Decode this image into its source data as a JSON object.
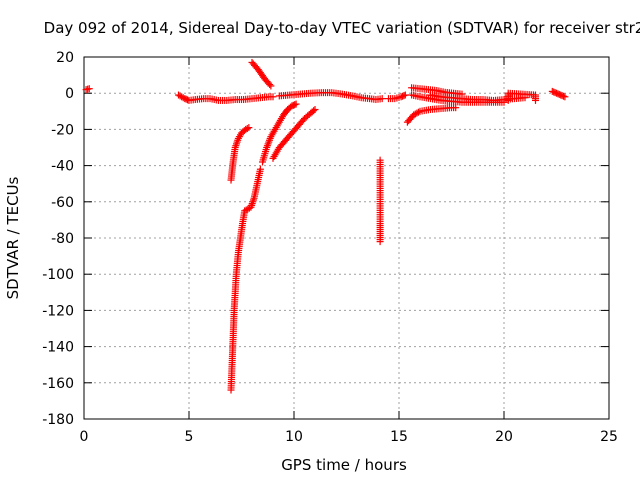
{
  "chart_data": {
    "type": "scatter",
    "title": "Day 092 of 2014, Sidereal Day-to-day VTEC variation (SDTVAR) for receiver str2",
    "xlabel": "GPS time / hours",
    "ylabel": "SDTVAR / TECUs",
    "xlim": [
      0,
      25
    ],
    "ylim": [
      -180,
      20
    ],
    "xticks": [
      0,
      5,
      10,
      15,
      20,
      25
    ],
    "yticks": [
      20,
      0,
      -20,
      -40,
      -60,
      -80,
      -100,
      -120,
      -140,
      -160,
      -180
    ],
    "grid": true,
    "marker": "plus",
    "marker_color": "#ff0000",
    "series": [
      {
        "segments": [
          [
            [
              0.1,
              2
            ],
            [
              0.25,
              2.5
            ]
          ],
          [
            [
              4.5,
              -1
            ],
            [
              4.8,
              -3
            ],
            [
              5.0,
              -4
            ],
            [
              5.3,
              -3.5
            ],
            [
              5.7,
              -3
            ],
            [
              6.0,
              -3
            ],
            [
              6.4,
              -4
            ],
            [
              6.8,
              -4
            ],
            [
              7.2,
              -3.5
            ],
            [
              7.6,
              -3.5
            ],
            [
              8.0,
              -3
            ],
            [
              8.4,
              -2.5
            ],
            [
              8.8,
              -2
            ],
            [
              9.0,
              -2
            ]
          ],
          [
            [
              9.3,
              -1.5
            ],
            [
              9.8,
              -1
            ],
            [
              10.3,
              -0.5
            ],
            [
              10.8,
              0
            ],
            [
              11.3,
              0.3
            ],
            [
              11.8,
              0.3
            ],
            [
              12.3,
              -0.5
            ],
            [
              12.8,
              -1.5
            ],
            [
              13.2,
              -2.5
            ],
            [
              13.6,
              -3
            ],
            [
              13.9,
              -3.5
            ],
            [
              14.2,
              -3
            ]
          ],
          [
            [
              14.5,
              -3
            ],
            [
              14.8,
              -3
            ],
            [
              15.1,
              -2
            ],
            [
              15.3,
              -1
            ]
          ],
          [
            [
              15.6,
              3
            ],
            [
              16.0,
              2.5
            ],
            [
              16.4,
              2
            ],
            [
              16.8,
              1.5
            ],
            [
              17.2,
              0.5
            ],
            [
              17.6,
              0
            ],
            [
              18.0,
              -0.5
            ]
          ],
          [
            [
              15.6,
              -1
            ],
            [
              16.0,
              -2
            ],
            [
              16.5,
              -3
            ],
            [
              17.0,
              -4
            ],
            [
              17.5,
              -4.5
            ],
            [
              18.0,
              -5
            ],
            [
              18.5,
              -5
            ],
            [
              19.0,
              -5
            ],
            [
              19.5,
              -5
            ],
            [
              20.0,
              -5
            ]
          ],
          [
            [
              16.5,
              -1
            ],
            [
              17.0,
              -2
            ],
            [
              17.5,
              -2.5
            ],
            [
              18.0,
              -3
            ],
            [
              18.5,
              -3.5
            ],
            [
              19.0,
              -3.5
            ],
            [
              19.5,
              -4
            ],
            [
              20.0,
              -3.5
            ],
            [
              20.5,
              -3
            ],
            [
              21.0,
              -2.5
            ]
          ],
          [
            [
              22.3,
              1
            ],
            [
              22.5,
              0
            ],
            [
              22.7,
              -1
            ],
            [
              22.9,
              -2
            ]
          ],
          [
            [
              15.4,
              -16
            ],
            [
              15.7,
              -12
            ],
            [
              16.0,
              -10
            ],
            [
              16.5,
              -9
            ],
            [
              17.0,
              -8.5
            ],
            [
              17.5,
              -8
            ],
            [
              17.7,
              -8
            ]
          ],
          [
            [
              8.0,
              17
            ],
            [
              8.3,
              13
            ],
            [
              8.6,
              8
            ],
            [
              8.9,
              4
            ]
          ],
          [
            [
              7.0,
              -48
            ],
            [
              7.1,
              -38
            ],
            [
              7.2,
              -30
            ],
            [
              7.35,
              -25
            ],
            [
              7.5,
              -22
            ],
            [
              7.7,
              -20
            ],
            [
              7.85,
              -19
            ]
          ],
          [
            [
              7.0,
              -164
            ],
            [
              7.05,
              -150
            ],
            [
              7.1,
              -135
            ],
            [
              7.15,
              -120
            ],
            [
              7.25,
              -100
            ],
            [
              7.35,
              -88
            ],
            [
              7.45,
              -80
            ],
            [
              7.55,
              -72
            ],
            [
              7.65,
              -65
            ],
            [
              7.8,
              -64
            ],
            [
              7.95,
              -63
            ],
            [
              8.1,
              -58
            ],
            [
              8.25,
              -50
            ],
            [
              8.4,
              -42
            ]
          ],
          [
            [
              8.5,
              -38
            ],
            [
              8.7,
              -30
            ],
            [
              8.9,
              -24
            ],
            [
              9.1,
              -20
            ],
            [
              9.3,
              -16
            ],
            [
              9.5,
              -12
            ],
            [
              9.7,
              -9
            ],
            [
              9.9,
              -7
            ],
            [
              10.1,
              -6
            ]
          ],
          [
            [
              9.0,
              -36
            ],
            [
              9.3,
              -30
            ],
            [
              9.6,
              -26
            ],
            [
              9.9,
              -22
            ],
            [
              10.2,
              -18
            ],
            [
              10.5,
              -14
            ],
            [
              10.8,
              -11
            ],
            [
              11.0,
              -9
            ]
          ],
          [
            [
              14.1,
              -37
            ],
            [
              14.1,
              -55
            ],
            [
              14.1,
              -72
            ],
            [
              14.1,
              -82
            ]
          ],
          [
            [
              20.2,
              -1
            ],
            [
              20.2,
              -4
            ],
            [
              20.2,
              0
            ],
            [
              21.5,
              -1
            ],
            [
              21.5,
              -4
            ]
          ]
        ]
      }
    ]
  }
}
